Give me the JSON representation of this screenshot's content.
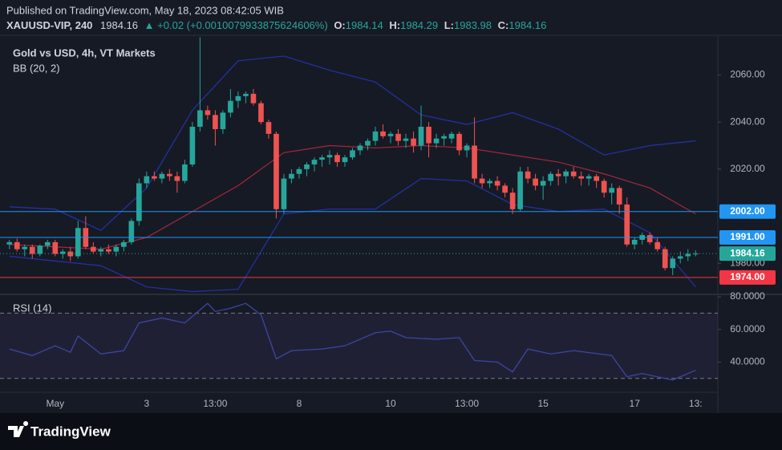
{
  "header": {
    "published": "Published on TradingView.com, May 18, 2023 08:42:05 WIB",
    "symbol": "XAUUSD-VIP, 240",
    "last": "1984.16",
    "change": "▲ +0.02 (+0.0010079933875624606%)",
    "open_label": "O:",
    "open": "1984.14",
    "high_label": "H:",
    "high": "1984.29",
    "low_label": "L:",
    "low": "1983.98",
    "close_label": "C:",
    "close": "1984.16"
  },
  "footer": {
    "brand": "TradingView"
  },
  "chart_data": {
    "type": "candlestick",
    "title": "Gold vs USD, 4h, VT Markets",
    "categories": [
      null,
      null,
      null,
      null,
      null,
      null,
      "May",
      null,
      null,
      null,
      null,
      null,
      null,
      null,
      null,
      null,
      null,
      null,
      "3",
      null,
      null,
      null,
      null,
      null,
      null,
      null,
      null,
      "13:00",
      null,
      null,
      null,
      null,
      null,
      null,
      null,
      null,
      null,
      null,
      "8",
      null,
      null,
      null,
      null,
      null,
      null,
      null,
      null,
      null,
      null,
      null,
      "10",
      null,
      null,
      null,
      null,
      null,
      null,
      null,
      null,
      null,
      "13:00",
      null,
      null,
      null,
      null,
      null,
      null,
      null,
      null,
      null,
      "15",
      null,
      null,
      null,
      null,
      null,
      null,
      null,
      null,
      null,
      null,
      null,
      "17",
      null,
      null,
      null,
      null,
      null,
      null,
      null,
      "13:"
    ],
    "ohlc": [
      [
        1988,
        1990,
        1986,
        1989
      ],
      [
        1989,
        1990.5,
        1985,
        1986
      ],
      [
        1986,
        1988,
        1983,
        1987
      ],
      [
        1987,
        1988,
        1982,
        1984
      ],
      [
        1984,
        1988,
        1983,
        1987.5
      ],
      [
        1987.5,
        1990,
        1986,
        1989
      ],
      [
        1989,
        1990,
        1983,
        1984
      ],
      [
        1984,
        1986,
        1982,
        1985
      ],
      [
        1985,
        1987,
        1981,
        1983
      ],
      [
        1983,
        1998,
        1982,
        1995
      ],
      [
        1995,
        2000,
        1986,
        1987
      ],
      [
        1987,
        1989,
        1984,
        1985
      ],
      [
        1985,
        1987,
        1983,
        1986
      ],
      [
        1986,
        1988,
        1984,
        1985
      ],
      [
        1985,
        1988,
        1983,
        1987
      ],
      [
        1987,
        1990,
        1985,
        1989
      ],
      [
        1989,
        1999,
        1988,
        1998
      ],
      [
        1998,
        2016,
        1996,
        2014
      ],
      [
        2014,
        2019,
        2012,
        2017
      ],
      [
        2017,
        2019,
        2015,
        2016
      ],
      [
        2016,
        2019,
        2014,
        2018
      ],
      [
        2018,
        2020,
        2015,
        2017
      ],
      [
        2017,
        2019,
        2010,
        2015
      ],
      [
        2015,
        2024,
        2014,
        2022
      ],
      [
        2022,
        2040,
        2021,
        2038
      ],
      [
        2038,
        2076,
        2036,
        2045
      ],
      [
        2045,
        2047,
        2041,
        2043
      ],
      [
        2043,
        2045,
        2030,
        2037
      ],
      [
        2037,
        2045,
        2035,
        2044
      ],
      [
        2044,
        2054,
        2042,
        2049
      ],
      [
        2049,
        2053,
        2046,
        2051
      ],
      [
        2051,
        2053,
        2048,
        2052
      ],
      [
        2052,
        2054,
        2047,
        2048
      ],
      [
        2048,
        2049,
        2039,
        2040
      ],
      [
        2040,
        2041,
        2033,
        2035
      ],
      [
        2035,
        2036,
        1999,
        2003
      ],
      [
        2003,
        2018,
        2001,
        2016
      ],
      [
        2016,
        2020,
        2014,
        2018
      ],
      [
        2018,
        2021,
        2016,
        2020
      ],
      [
        2020,
        2023,
        2017,
        2022
      ],
      [
        2022,
        2025,
        2019,
        2024
      ],
      [
        2024,
        2026,
        2021,
        2025
      ],
      [
        2025,
        2028,
        2022,
        2026
      ],
      [
        2026,
        2027,
        2021,
        2023
      ],
      [
        2023,
        2026,
        2021,
        2025
      ],
      [
        2025,
        2029,
        2024,
        2028
      ],
      [
        2028,
        2031,
        2026,
        2030
      ],
      [
        2030,
        2033,
        2028,
        2032
      ],
      [
        2032,
        2038,
        2030,
        2036
      ],
      [
        2036,
        2039,
        2033,
        2034
      ],
      [
        2034,
        2036,
        2031,
        2035
      ],
      [
        2035,
        2037,
        2030,
        2032
      ],
      [
        2032,
        2035,
        2029,
        2033
      ],
      [
        2033,
        2036,
        2027,
        2030
      ],
      [
        2030,
        2047,
        2028,
        2038
      ],
      [
        2038,
        2040,
        2025,
        2031
      ],
      [
        2031,
        2035,
        2029,
        2033
      ],
      [
        2033,
        2035,
        2030,
        2034
      ],
      [
        2033,
        2036,
        2031,
        2035
      ],
      [
        2035,
        2036,
        2026,
        2028
      ],
      [
        2028,
        2031,
        2025,
        2030
      ],
      [
        2030,
        2042,
        2014,
        2016
      ],
      [
        2016,
        2018,
        2012,
        2014
      ],
      [
        2014,
        2016,
        2012,
        2015
      ],
      [
        2015,
        2017,
        2011,
        2013
      ],
      [
        2013,
        2014,
        2008,
        2010
      ],
      [
        2010,
        2012,
        2001,
        2003
      ],
      [
        2003,
        2021,
        2002,
        2019
      ],
      [
        2019,
        2021,
        2014,
        2016
      ],
      [
        2016,
        2018,
        2011,
        2013
      ],
      [
        2013,
        2017,
        2007,
        2015
      ],
      [
        2015,
        2019,
        2013,
        2018
      ],
      [
        2018,
        2020,
        2013,
        2017
      ],
      [
        2017,
        2020,
        2014,
        2019
      ],
      [
        2019,
        2021,
        2016,
        2017
      ],
      [
        2017,
        2019,
        2013,
        2016
      ],
      [
        2016,
        2018,
        2013,
        2017
      ],
      [
        2017,
        2018,
        2012,
        2015
      ],
      [
        2015,
        2016,
        2008,
        2010
      ],
      [
        2010,
        2014,
        2005,
        2012
      ],
      [
        2012,
        2013,
        2001,
        2005
      ],
      [
        2005,
        2008,
        1987,
        1988
      ],
      [
        1988,
        1991,
        1986,
        1990
      ],
      [
        1990,
        1993,
        1988,
        1992
      ],
      [
        1992,
        1993,
        1988,
        1989
      ],
      [
        1989,
        1991,
        1985,
        1986
      ],
      [
        1986,
        1987,
        1977,
        1978
      ],
      [
        1978,
        1983,
        1975,
        1982
      ],
      [
        1982,
        1985,
        1980,
        1983
      ],
      [
        1983,
        1986,
        1981,
        1984
      ],
      [
        1984,
        1985.5,
        1983,
        1984.16
      ]
    ],
    "up_color": "#26a69a",
    "down_color": "#ef5350",
    "ylim": [
      1967.5,
      2076.5
    ],
    "yticks": [
      {
        "value": 1980,
        "label": "1980.00"
      },
      {
        "value": 2020,
        "label": "2020.00"
      },
      {
        "value": 2040,
        "label": "2040.00"
      },
      {
        "value": 2060,
        "label": "2060.00"
      }
    ],
    "grid": false,
    "bollinger": {
      "name": "BB (20, 2)",
      "x": [
        0,
        6,
        12,
        18,
        24,
        30,
        36,
        42,
        48,
        54,
        60,
        66,
        72,
        78,
        84,
        90
      ],
      "series": [
        {
          "color": "#2432a8",
          "values": [
            2004,
            2003,
            1994,
            2012,
            2045,
            2066,
            2068,
            2062,
            2057,
            2043,
            2039,
            2044,
            2037,
            2026,
            2030,
            2032
          ]
        },
        {
          "color": "#a3283a",
          "values": [
            1988,
            1987,
            1986,
            1991,
            2002,
            2013,
            2027,
            2030,
            2029,
            2030,
            2029,
            2026,
            2023,
            2018,
            2012,
            2001
          ]
        },
        {
          "color": "#2432a8",
          "values": [
            1983,
            1981,
            1979,
            1970,
            1968,
            1969,
            2001,
            2003,
            2003,
            2016,
            2015,
            2005,
            2002,
            2003,
            1993,
            1970
          ]
        }
      ]
    },
    "price_lines": [
      {
        "value": 2002,
        "label": "2002.00",
        "color": "#2196f3",
        "dash": false
      },
      {
        "value": 1991,
        "label": "1991.00",
        "color": "#2196f3",
        "dash": false
      },
      {
        "value": 1984.16,
        "label": "1984.16",
        "color": "#26a69a",
        "dash": true
      },
      {
        "value": 1974,
        "label": "1974.00",
        "color": "#f23645",
        "dash": false
      }
    ],
    "rsi": {
      "name": "RSI (14)",
      "x": [
        0,
        3,
        6,
        8,
        9,
        12,
        15,
        17,
        20,
        23,
        26,
        27,
        29,
        31,
        33,
        35,
        37,
        41,
        44,
        48,
        50,
        52,
        56,
        59,
        61,
        64,
        66,
        68,
        71,
        74,
        79,
        81,
        83,
        86,
        87,
        90
      ],
      "values": [
        48,
        44,
        50,
        46,
        56,
        45,
        47,
        64,
        67,
        64,
        76,
        71,
        73,
        76,
        69,
        42,
        47,
        48,
        50,
        58,
        59,
        55,
        54,
        55,
        41,
        40,
        34,
        48,
        45,
        47,
        44,
        31,
        33,
        30,
        29,
        35
      ],
      "color": "#3b47a0",
      "ylim": [
        22,
        81
      ],
      "yticks": [
        {
          "value": 40,
          "label": "40.0000"
        },
        {
          "value": 60,
          "label": "60.0000"
        },
        {
          "value": 80,
          "label": "80.0000"
        }
      ],
      "bands": [
        30,
        70
      ]
    }
  }
}
